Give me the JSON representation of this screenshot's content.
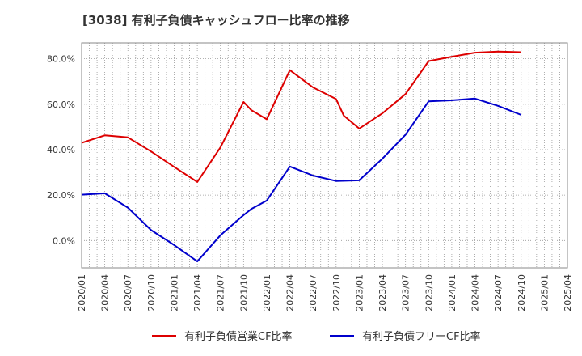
{
  "chart_data": {
    "type": "line",
    "title": "[3038]  有利子負債キャッシュフロー比率の推移",
    "xlabel": "",
    "ylabel": "",
    "x_ticks": [
      "2020/01",
      "2020/04",
      "2020/07",
      "2020/10",
      "2021/01",
      "2021/04",
      "2021/07",
      "2021/10",
      "2022/01",
      "2022/04",
      "2022/07",
      "2022/10",
      "2023/01",
      "2023/04",
      "2023/07",
      "2023/10",
      "2024/01",
      "2024/04",
      "2024/07",
      "2024/10",
      "2025/01",
      "2025/04"
    ],
    "y_ticks": [
      "0.0%",
      "20.0%",
      "40.0%",
      "60.0%",
      "80.0%"
    ],
    "y_tick_values": [
      0,
      20,
      40,
      60,
      80
    ],
    "ylim": [
      -12,
      87
    ],
    "x_range": [
      "2020/01",
      "2025/04"
    ],
    "grid": true,
    "legend_position": "bottom",
    "series": [
      {
        "name": "有利子負債営業CF比率",
        "color": "#dd0000",
        "points": [
          {
            "x": "2020/01",
            "y": 43.0
          },
          {
            "x": "2020/04",
            "y": 46.3
          },
          {
            "x": "2020/07",
            "y": 45.4
          },
          {
            "x": "2020/10",
            "y": 39.2
          },
          {
            "x": "2021/01",
            "y": 32.4
          },
          {
            "x": "2021/04",
            "y": 25.8
          },
          {
            "x": "2021/07",
            "y": 41.0
          },
          {
            "x": "2021/10",
            "y": 61.0
          },
          {
            "x": "2021/11",
            "y": 57.4
          },
          {
            "x": "2022/01",
            "y": 53.4
          },
          {
            "x": "2022/04",
            "y": 75.0
          },
          {
            "x": "2022/07",
            "y": 67.4
          },
          {
            "x": "2022/10",
            "y": 62.3
          },
          {
            "x": "2022/11",
            "y": 55.0
          },
          {
            "x": "2023/01",
            "y": 49.3
          },
          {
            "x": "2023/04",
            "y": 56.0
          },
          {
            "x": "2023/07",
            "y": 64.5
          },
          {
            "x": "2023/10",
            "y": 79.0
          },
          {
            "x": "2024/01",
            "y": 80.9
          },
          {
            "x": "2024/04",
            "y": 82.7
          },
          {
            "x": "2024/07",
            "y": 83.2
          },
          {
            "x": "2024/10",
            "y": 82.9
          }
        ]
      },
      {
        "name": "有利子負債フリーCF比率",
        "color": "#0000cc",
        "points": [
          {
            "x": "2020/01",
            "y": 20.2
          },
          {
            "x": "2020/04",
            "y": 20.8
          },
          {
            "x": "2020/07",
            "y": 14.5
          },
          {
            "x": "2020/10",
            "y": 4.6
          },
          {
            "x": "2021/01",
            "y": -2.0
          },
          {
            "x": "2021/04",
            "y": -9.2
          },
          {
            "x": "2021/07",
            "y": 2.3
          },
          {
            "x": "2021/10",
            "y": 11.2
          },
          {
            "x": "2021/11",
            "y": 13.9
          },
          {
            "x": "2022/01",
            "y": 17.6
          },
          {
            "x": "2022/04",
            "y": 32.6
          },
          {
            "x": "2022/07",
            "y": 28.6
          },
          {
            "x": "2022/10",
            "y": 26.2
          },
          {
            "x": "2023/01",
            "y": 26.5
          },
          {
            "x": "2023/04",
            "y": 36.0
          },
          {
            "x": "2023/07",
            "y": 46.6
          },
          {
            "x": "2023/10",
            "y": 61.3
          },
          {
            "x": "2024/01",
            "y": 61.7
          },
          {
            "x": "2024/04",
            "y": 62.5
          },
          {
            "x": "2024/07",
            "y": 59.3
          },
          {
            "x": "2024/10",
            "y": 55.3
          }
        ]
      }
    ]
  }
}
